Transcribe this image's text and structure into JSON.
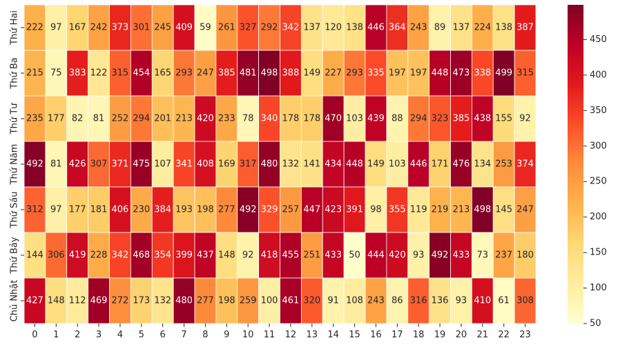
{
  "chart_data": {
    "type": "heatmap",
    "title": "",
    "xlabel": "",
    "ylabel": "",
    "x": [
      "0",
      "1",
      "2",
      "3",
      "4",
      "5",
      "6",
      "7",
      "8",
      "9",
      "10",
      "11",
      "12",
      "13",
      "14",
      "15",
      "16",
      "17",
      "18",
      "19",
      "20",
      "21",
      "22",
      "23"
    ],
    "y": [
      "Thứ Hai",
      "Thứ Ba",
      "Thứ Tư",
      "Thứ Năm",
      "Thứ Sáu",
      "Thứ Bảy",
      "Chủ Nhật"
    ],
    "values": [
      [
        222,
        97,
        167,
        242,
        373,
        301,
        245,
        409,
        59,
        261,
        327,
        292,
        342,
        137,
        120,
        138,
        446,
        364,
        243,
        89,
        137,
        224,
        138,
        387
      ],
      [
        215,
        75,
        383,
        122,
        315,
        454,
        165,
        293,
        247,
        385,
        481,
        498,
        388,
        149,
        227,
        293,
        335,
        197,
        197,
        448,
        473,
        338,
        499,
        315
      ],
      [
        235,
        177,
        82,
        81,
        252,
        294,
        201,
        213,
        420,
        233,
        78,
        340,
        178,
        178,
        470,
        103,
        439,
        88,
        294,
        323,
        385,
        438,
        155,
        92
      ],
      [
        492,
        81,
        426,
        307,
        371,
        475,
        107,
        341,
        408,
        169,
        317,
        480,
        132,
        141,
        434,
        448,
        149,
        103,
        446,
        171,
        476,
        134,
        253,
        374
      ],
      [
        312,
        97,
        177,
        181,
        406,
        230,
        384,
        193,
        198,
        277,
        492,
        329,
        257,
        447,
        423,
        391,
        98,
        355,
        119,
        219,
        213,
        498,
        145,
        247
      ],
      [
        144,
        306,
        419,
        228,
        342,
        468,
        354,
        399,
        437,
        148,
        92,
        418,
        455,
        251,
        433,
        50,
        444,
        420,
        93,
        492,
        433,
        73,
        237,
        180
      ],
      [
        427,
        148,
        112,
        469,
        272,
        173,
        132,
        480,
        277,
        198,
        259,
        100,
        461,
        320,
        91,
        108,
        243,
        86,
        316,
        136,
        93,
        410,
        61,
        308
      ]
    ],
    "colorbar": {
      "colormap": "YlOrRd",
      "vmin": 50,
      "vmax": 499,
      "ticks": [
        50,
        100,
        150,
        200,
        250,
        300,
        350,
        400,
        450
      ]
    },
    "annotations": true,
    "grid_lines": "white"
  }
}
